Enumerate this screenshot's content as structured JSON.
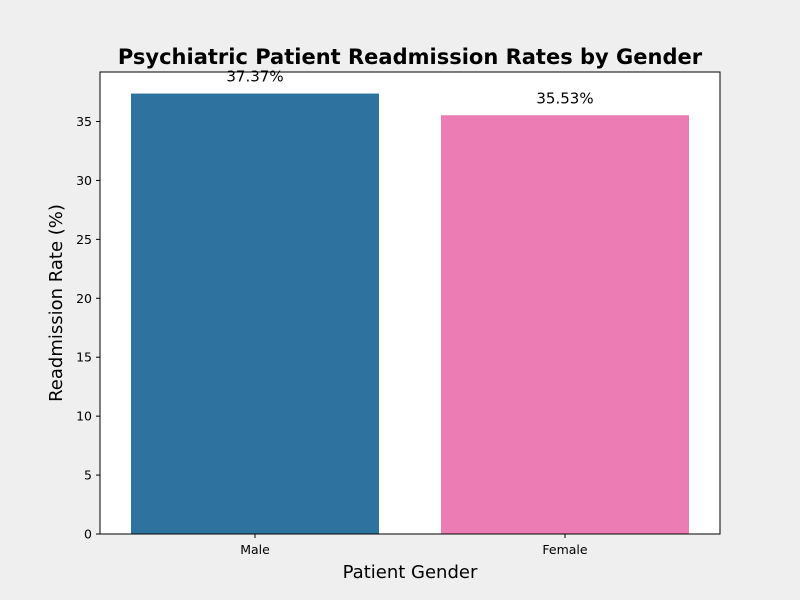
{
  "chart_data": {
    "type": "bar",
    "title": "Psychiatric Patient Readmission Rates by Gender",
    "xlabel": "Patient Gender",
    "ylabel": "Readmission Rate (%)",
    "categories": [
      "Male",
      "Female"
    ],
    "values": [
      37.37,
      35.53
    ],
    "value_labels": [
      "37.37%",
      "35.53%"
    ],
    "colors": [
      "#2e73a0",
      "#ec7db4"
    ],
    "ylim": [
      0,
      39.2
    ],
    "yticks": [
      0,
      5,
      10,
      15,
      20,
      25,
      30,
      35
    ],
    "grid": false,
    "legend": "none"
  },
  "colors": {
    "figure_background": "#efefef",
    "plot_background": "#ffffff"
  }
}
